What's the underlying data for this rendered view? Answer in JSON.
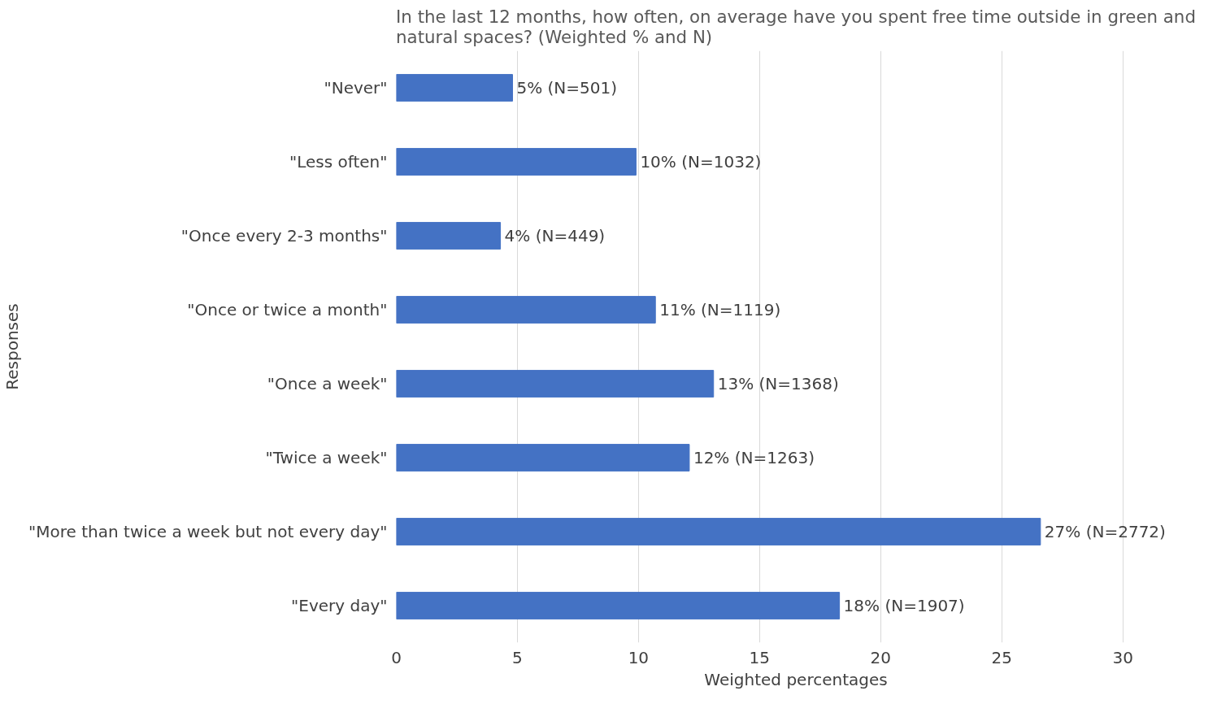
{
  "chart_data": {
    "type": "bar",
    "orientation": "horizontal",
    "title": "In the last 12 months, how often, on average have you spent free time outside in green and natural spaces? (Weighted % and N)",
    "xlabel": "Weighted percentages",
    "ylabel": "Responses",
    "categories": [
      "\"Never\"",
      "\"Less often\"",
      "\"Once every 2-3 months\"",
      "\"Once or twice a month\"",
      "\"Once a week\"",
      "\"Twice a week\"",
      "\"More than twice a week but not every day\"",
      "\"Every day\""
    ],
    "values": [
      4.8,
      9.9,
      4.3,
      10.7,
      13.1,
      12.1,
      26.6,
      18.3
    ],
    "value_labels": [
      "5% (N=501)",
      "10% (N=1032)",
      "4% (N=449)",
      "11% (N=1119)",
      "13% (N=1368)",
      "12% (N=1263)",
      "27% (N=2772)",
      "18% (N=1907)"
    ],
    "color": "#4472c4",
    "xlim": [
      0,
      30
    ],
    "xticks": [
      0,
      5,
      10,
      15,
      20,
      25,
      30
    ],
    "grid": "x"
  }
}
